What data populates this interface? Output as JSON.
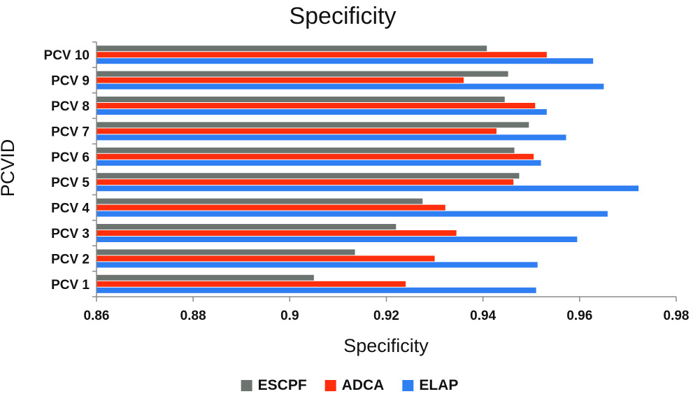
{
  "chart_data": {
    "type": "bar",
    "orientation": "horizontal",
    "title": "Specificity",
    "xlabel": "Specificity",
    "ylabel": "PCVID",
    "xlim": [
      0.86,
      0.98
    ],
    "x_ticks": [
      "0.86",
      "0.88",
      "0.9",
      "0.92",
      "0.94",
      "0.96",
      "0.98"
    ],
    "categories": [
      "PCV 1",
      "PCV 2",
      "PCV 3",
      "PCV 4",
      "PCV 5",
      "PCV 6",
      "PCV 7",
      "PCV 8",
      "PCV 9",
      "PCV 10"
    ],
    "series": [
      {
        "name": "ESCPF",
        "color": "#6d7470",
        "values": [
          0.905,
          0.9135,
          0.922,
          0.9275,
          0.9475,
          0.9465,
          0.9495,
          0.9445,
          0.9452,
          0.9408
        ]
      },
      {
        "name": "ADCA",
        "color": "#ff2e0c",
        "values": [
          0.924,
          0.93,
          0.9345,
          0.9322,
          0.9463,
          0.9505,
          0.9428,
          0.9508,
          0.936,
          0.9532
        ]
      },
      {
        "name": "ELAP",
        "color": "#2f7ff2",
        "values": [
          0.951,
          0.9513,
          0.9595,
          0.9658,
          0.9722,
          0.952,
          0.9572,
          0.9532,
          0.965,
          0.9628
        ]
      }
    ],
    "grid": false,
    "legend": "bottom"
  }
}
